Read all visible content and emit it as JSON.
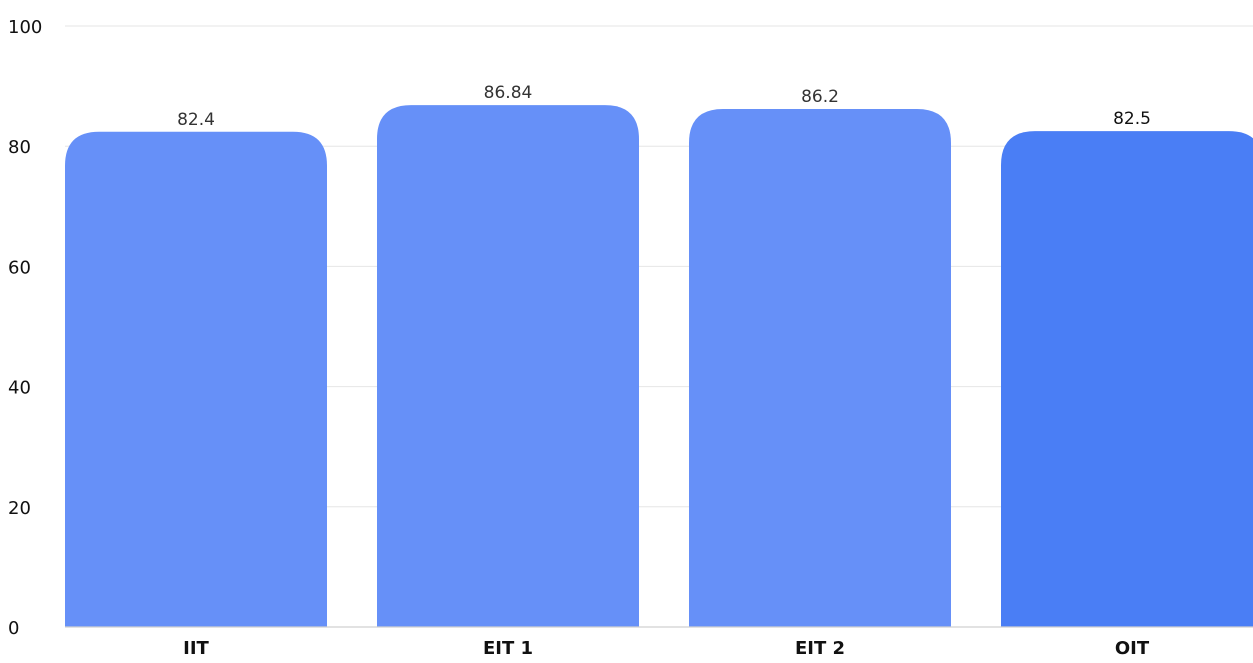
{
  "chart_data": {
    "type": "bar",
    "categories": [
      "IIT",
      "EIT 1",
      "EIT 2",
      "OIT"
    ],
    "values": [
      82.4,
      86.84,
      86.2,
      82.5
    ],
    "value_labels": [
      "82.4",
      "86.84",
      "86.2",
      "82.5"
    ],
    "ylim": [
      0,
      100
    ],
    "yticks": [
      "0",
      "20",
      "40",
      "60",
      "80",
      "100"
    ],
    "ytick_values": [
      0,
      20,
      40,
      60,
      80,
      100
    ],
    "grid": true,
    "title": "",
    "xlabel": "",
    "ylabel": "",
    "colors": {
      "bar": "#6690f8",
      "bar_highlight": "#4a7ef5"
    },
    "highlight_index": 3
  }
}
